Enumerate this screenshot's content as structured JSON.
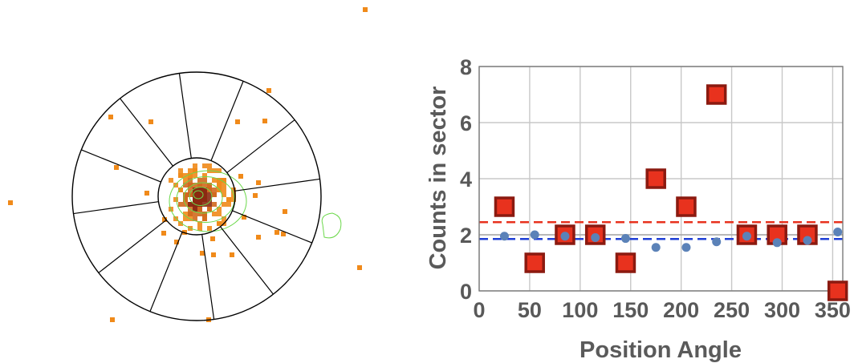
{
  "chart_data": [
    {
      "type": "image",
      "panel": "sector-map",
      "sectors": 12,
      "colors": {
        "pixels": "#f08a1a",
        "pixels_dense": "#d2691e",
        "contours": "#6bd84a",
        "rings": "#000000"
      },
      "description_source": "event map with annular sectors"
    },
    {
      "type": "scatter",
      "xlabel": "Position Angle",
      "ylabel": "Counts in sector",
      "xlim": [
        0,
        360
      ],
      "ylim": [
        0,
        8
      ],
      "xticks": [
        "0",
        "50",
        "100",
        "150",
        "200",
        "250",
        "300",
        "350"
      ],
      "yticks": [
        "0",
        "2",
        "4",
        "6",
        "8"
      ],
      "grid": true,
      "series": [
        {
          "marker": "square",
          "color": "#e8321e",
          "x": [
            25,
            55,
            85,
            115,
            145,
            175,
            205,
            235,
            265,
            295,
            325,
            355
          ],
          "y": [
            3,
            1,
            2,
            2,
            1,
            4,
            3,
            7,
            2,
            2,
            2,
            0
          ]
        },
        {
          "marker": "circle",
          "color": "#5b82b8",
          "x": [
            25,
            55,
            85,
            115,
            145,
            175,
            205,
            235,
            265,
            295,
            325,
            355
          ],
          "y": [
            1.95,
            2.0,
            1.95,
            1.9,
            1.87,
            1.55,
            1.55,
            1.75,
            1.95,
            1.72,
            1.8,
            2.1
          ]
        }
      ],
      "reference_lines": [
        {
          "style": "dashed",
          "color": "#e8321e",
          "y": 2.45
        },
        {
          "style": "dashed",
          "color": "#1f3fd6",
          "y": 1.85
        },
        {
          "style": "solid",
          "color": "#a9a9a9",
          "y": 2.0
        }
      ]
    }
  ]
}
